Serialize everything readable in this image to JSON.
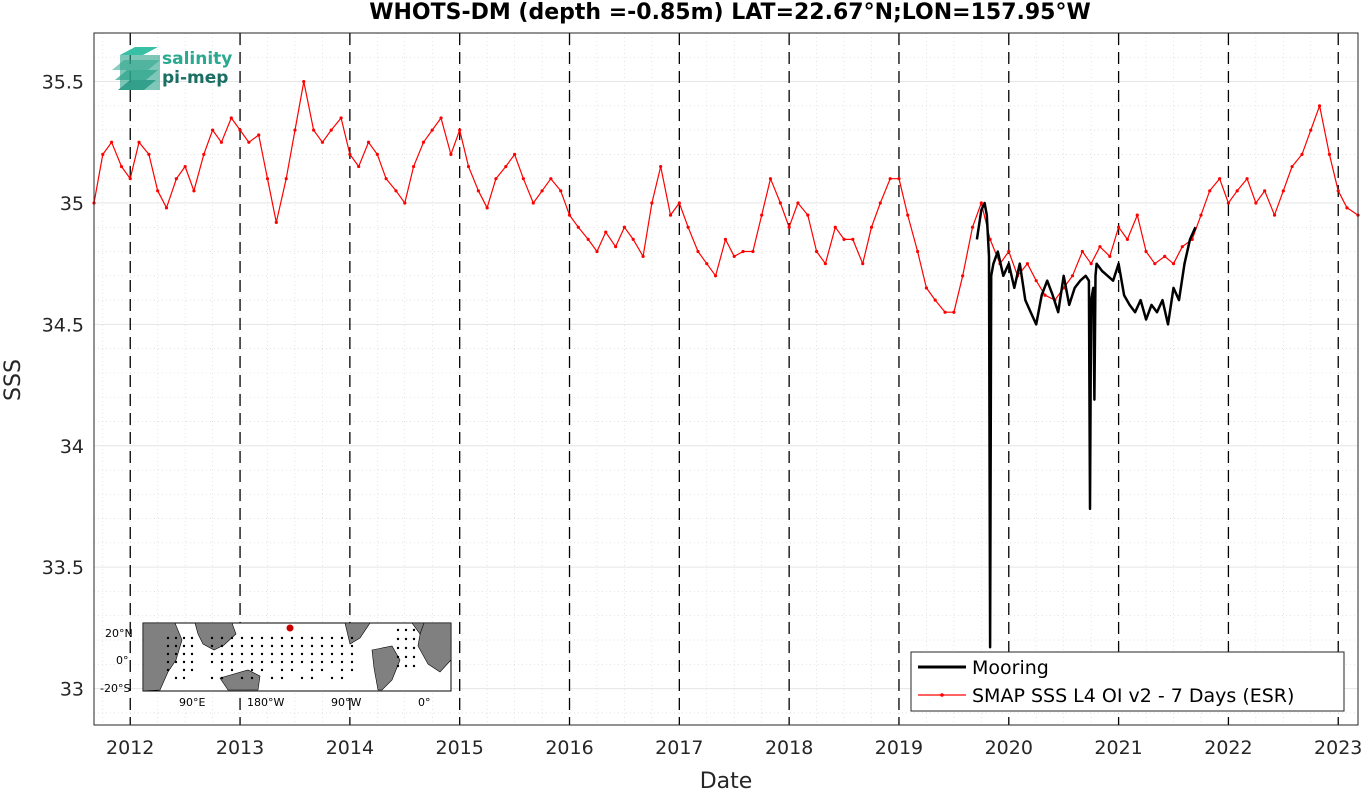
{
  "chart_data": {
    "type": "line",
    "title": "WHOTS-DM (depth =-0.85m) LAT=22.67°N;LON=157.95°W",
    "xlabel": "Date",
    "ylabel": "SSS",
    "xlim": [
      2011.67,
      2023.18
    ],
    "ylim": [
      32.85,
      35.7
    ],
    "x_ticks": [
      "2012",
      "2013",
      "2014",
      "2015",
      "2016",
      "2017",
      "2018",
      "2019",
      "2020",
      "2021",
      "2022",
      "2023"
    ],
    "y_ticks": [
      "33",
      "33.5",
      "34",
      "34.5",
      "35",
      "35.5"
    ],
    "grid": "dotted minor grid with dashed vertical lines at year boundaries",
    "legend_position": "bottom-right",
    "series": [
      {
        "name": "Mooring",
        "color": "#000000",
        "x": [
          2019.71,
          2019.75,
          2019.78,
          2019.8,
          2019.82,
          2019.83,
          2019.84,
          2019.86,
          2019.9,
          2019.95,
          2020.0,
          2020.05,
          2020.1,
          2020.15,
          2020.2,
          2020.25,
          2020.3,
          2020.35,
          2020.4,
          2020.45,
          2020.5,
          2020.55,
          2020.6,
          2020.65,
          2020.7,
          2020.73,
          2020.74,
          2020.75,
          2020.77,
          2020.78,
          2020.79,
          2020.8,
          2020.85,
          2020.9,
          2020.95,
          2021.0,
          2021.05,
          2021.1,
          2021.15,
          2021.2,
          2021.25,
          2021.3,
          2021.35,
          2021.4,
          2021.45,
          2021.5,
          2021.55,
          2021.6,
          2021.65,
          2021.7
        ],
        "y": [
          34.85,
          34.97,
          35.0,
          34.95,
          34.78,
          33.17,
          34.7,
          34.75,
          34.8,
          34.7,
          34.75,
          34.65,
          34.75,
          34.6,
          34.55,
          34.5,
          34.62,
          34.68,
          34.62,
          34.55,
          34.7,
          34.58,
          34.65,
          34.68,
          34.7,
          34.68,
          33.74,
          34.6,
          34.65,
          34.19,
          34.7,
          34.75,
          34.72,
          34.7,
          34.68,
          34.75,
          34.62,
          34.58,
          34.55,
          34.6,
          34.52,
          34.58,
          34.55,
          34.6,
          34.5,
          34.65,
          34.6,
          34.75,
          34.85,
          34.9
        ]
      },
      {
        "name": "SMAP SSS L4 OI v2 - 7 Days (ESR)",
        "color": "#ff0000",
        "x": [
          2011.67,
          2011.75,
          2011.83,
          2011.92,
          2012.0,
          2012.08,
          2012.17,
          2012.25,
          2012.33,
          2012.42,
          2012.5,
          2012.58,
          2012.67,
          2012.75,
          2012.83,
          2012.92,
          2013.0,
          2013.08,
          2013.17,
          2013.25,
          2013.33,
          2013.42,
          2013.5,
          2013.58,
          2013.67,
          2013.75,
          2013.83,
          2013.92,
          2014.0,
          2014.08,
          2014.17,
          2014.25,
          2014.33,
          2014.42,
          2014.5,
          2014.58,
          2014.67,
          2014.75,
          2014.83,
          2014.92,
          2015.0,
          2015.08,
          2015.17,
          2015.25,
          2015.33,
          2015.42,
          2015.5,
          2015.58,
          2015.67,
          2015.75,
          2015.83,
          2015.92,
          2016.0,
          2016.08,
          2016.17,
          2016.25,
          2016.33,
          2016.42,
          2016.5,
          2016.58,
          2016.67,
          2016.75,
          2016.83,
          2016.92,
          2017.0,
          2017.08,
          2017.17,
          2017.25,
          2017.33,
          2017.42,
          2017.5,
          2017.58,
          2017.67,
          2017.75,
          2017.83,
          2017.92,
          2018.0,
          2018.08,
          2018.17,
          2018.25,
          2018.33,
          2018.42,
          2018.5,
          2018.58,
          2018.67,
          2018.75,
          2018.83,
          2018.92,
          2019.0,
          2019.08,
          2019.17,
          2019.25,
          2019.33,
          2019.42,
          2019.5,
          2019.58,
          2019.67,
          2019.75,
          2019.83,
          2019.92,
          2020.0,
          2020.08,
          2020.17,
          2020.25,
          2020.33,
          2020.42,
          2020.5,
          2020.58,
          2020.67,
          2020.75,
          2020.83,
          2020.92,
          2021.0,
          2021.08,
          2021.17,
          2021.25,
          2021.33,
          2021.42,
          2021.5,
          2021.58,
          2021.67,
          2021.75,
          2021.83,
          2021.92,
          2022.0,
          2022.08,
          2022.17,
          2022.25,
          2022.33,
          2022.42,
          2022.5,
          2022.58,
          2022.67,
          2022.75,
          2022.83,
          2022.92,
          2023.0,
          2023.08,
          2023.18
        ],
        "y": [
          35.0,
          35.2,
          35.25,
          35.15,
          35.1,
          35.25,
          35.2,
          35.05,
          34.98,
          35.1,
          35.15,
          35.05,
          35.2,
          35.3,
          35.25,
          35.35,
          35.3,
          35.25,
          35.28,
          35.1,
          34.92,
          35.1,
          35.3,
          35.5,
          35.3,
          35.25,
          35.3,
          35.35,
          35.2,
          35.15,
          35.25,
          35.2,
          35.1,
          35.05,
          35.0,
          35.15,
          35.25,
          35.3,
          35.35,
          35.2,
          35.3,
          35.15,
          35.05,
          34.98,
          35.1,
          35.15,
          35.2,
          35.1,
          35.0,
          35.05,
          35.1,
          35.05,
          34.95,
          34.9,
          34.85,
          34.8,
          34.88,
          34.82,
          34.9,
          34.85,
          34.78,
          35.0,
          35.15,
          34.95,
          35.0,
          34.9,
          34.8,
          34.75,
          34.7,
          34.85,
          34.78,
          34.8,
          34.8,
          34.95,
          35.1,
          35.0,
          34.9,
          35.0,
          34.95,
          34.8,
          34.75,
          34.9,
          34.85,
          34.85,
          34.75,
          34.9,
          35.0,
          35.1,
          35.1,
          34.95,
          34.8,
          34.65,
          34.6,
          34.55,
          34.55,
          34.7,
          34.9,
          35.0,
          34.85,
          34.75,
          34.8,
          34.7,
          34.75,
          34.68,
          34.62,
          34.6,
          34.65,
          34.7,
          34.8,
          34.75,
          34.82,
          34.78,
          34.9,
          34.85,
          34.95,
          34.8,
          34.75,
          34.78,
          34.75,
          34.82,
          34.85,
          34.95,
          35.05,
          35.1,
          35.0,
          35.05,
          35.1,
          35.0,
          35.05,
          34.95,
          35.05,
          35.15,
          35.2,
          35.3,
          35.4,
          35.2,
          35.05,
          34.98,
          34.95
        ]
      }
    ]
  },
  "logo": {
    "line1": "salinity",
    "line2": "pi-mep"
  },
  "inset_map": {
    "lat_labels": [
      "20°N",
      "0°",
      "-20°S"
    ],
    "lon_labels": [
      "90°E",
      "180°W",
      "90°W",
      "0°"
    ],
    "land_color": "#808080",
    "marker_color": "#cc0000"
  }
}
